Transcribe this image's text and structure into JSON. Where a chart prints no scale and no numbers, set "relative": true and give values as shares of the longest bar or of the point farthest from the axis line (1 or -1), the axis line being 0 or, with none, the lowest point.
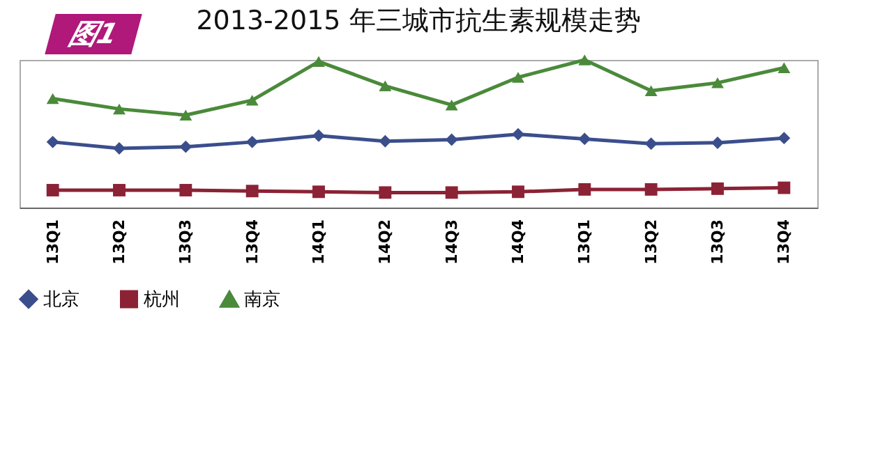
{
  "chart_data": {
    "type": "line",
    "title": "2013-2015 年三城市抗生素规模走势",
    "annotations": [
      "图1"
    ],
    "categories": [
      "13Q1",
      "13Q2",
      "13Q3",
      "13Q4",
      "14Q1",
      "14Q2",
      "14Q3",
      "14Q4",
      "13Q1",
      "13Q2",
      "13Q3",
      "13Q4"
    ],
    "relative": true,
    "legend": "bottom",
    "tick_labels": "x",
    "series": [
      {
        "name": "北京",
        "color": "#3b4e8c",
        "marker": "diamond",
        "values": [
          0.444,
          0.401,
          0.412,
          0.444,
          0.487,
          0.449,
          0.46,
          0.497,
          0.465,
          0.433,
          0.439,
          0.471
        ]
      },
      {
        "name": "杭州",
        "color": "#8c2235",
        "marker": "square",
        "values": [
          0.118,
          0.118,
          0.118,
          0.112,
          0.107,
          0.102,
          0.102,
          0.107,
          0.123,
          0.123,
          0.128,
          0.134
        ]
      },
      {
        "name": "南京",
        "color": "#4a8a3a",
        "marker": "triangle",
        "values": [
          0.738,
          0.668,
          0.626,
          0.727,
          0.989,
          0.824,
          0.695,
          0.882,
          1.0,
          0.791,
          0.845,
          0.947
        ]
      }
    ]
  }
}
